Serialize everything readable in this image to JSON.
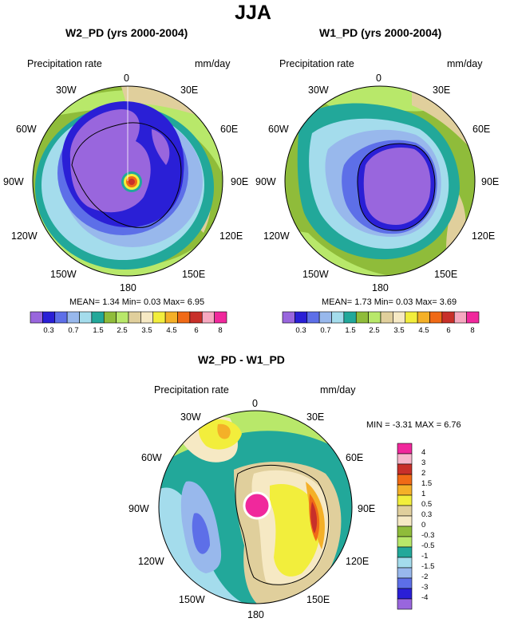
{
  "main_title": "JJA",
  "chart_data": [
    {
      "type": "heatmap",
      "projection": "south-polar-stereographic",
      "title": "W2_PD (yrs 2000-2004)",
      "variable": "Precipitation rate",
      "units": "mm/day",
      "longitude_labels": [
        "0",
        "30E",
        "60E",
        "90E",
        "120E",
        "150E",
        "180",
        "150W",
        "120W",
        "90W",
        "60W",
        "30W"
      ],
      "stats": {
        "mean_label": "MEAN=",
        "mean": "1.34",
        "min_label": "Min=",
        "min": "0.03",
        "max_label": "Max=",
        "max": "6.95"
      },
      "colorbar": {
        "levels": [
          "0.3",
          "0.7",
          "1.5",
          "2.5",
          "3.5",
          "4.5",
          "6",
          "8"
        ],
        "colors": [
          "#9966dd",
          "#2a1fd6",
          "#5d6fe8",
          "#98b8ec",
          "#a4dcec",
          "#22a89a",
          "#8fbc3a",
          "#b8e86a",
          "#e0cf9c",
          "#f6e9c4",
          "#f2ee3c",
          "#f4b028",
          "#f06a16",
          "#c8302a",
          "#f6a8c0",
          "#f0289c"
        ]
      }
    },
    {
      "type": "heatmap",
      "projection": "south-polar-stereographic",
      "title": "W1_PD (yrs 2000-2004)",
      "variable": "Precipitation rate",
      "units": "mm/day",
      "longitude_labels": [
        "0",
        "30E",
        "60E",
        "90E",
        "120E",
        "150E",
        "180",
        "150W",
        "120W",
        "90W",
        "60W",
        "30W"
      ],
      "stats": {
        "mean_label": "MEAN=",
        "mean": "1.73",
        "min_label": "Min=",
        "min": "0.03",
        "max_label": "Max=",
        "max": "3.69"
      },
      "colorbar": {
        "levels": [
          "0.3",
          "0.7",
          "1.5",
          "2.5",
          "3.5",
          "4.5",
          "6",
          "8"
        ],
        "colors": [
          "#9966dd",
          "#2a1fd6",
          "#5d6fe8",
          "#98b8ec",
          "#a4dcec",
          "#22a89a",
          "#8fbc3a",
          "#b8e86a",
          "#e0cf9c",
          "#f6e9c4",
          "#f2ee3c",
          "#f4b028",
          "#f06a16",
          "#c8302a",
          "#f6a8c0",
          "#f0289c"
        ]
      }
    },
    {
      "type": "heatmap",
      "projection": "south-polar-stereographic",
      "title": "W2_PD - W1_PD",
      "variable": "Precipitation rate",
      "units": "mm/day",
      "longitude_labels": [
        "0",
        "30E",
        "60E",
        "90E",
        "120E",
        "150E",
        "180",
        "150W",
        "120W",
        "90W",
        "60W",
        "30W"
      ],
      "stats": {
        "min_label": "MIN =",
        "min": "-3.31",
        "max_label": "MAX =",
        "max": "6.76"
      },
      "colorbar": {
        "levels": [
          "4",
          "3",
          "2",
          "1.5",
          "1",
          "0.5",
          "0.3",
          "0",
          "-0.3",
          "-0.5",
          "-1",
          "-1.5",
          "-2",
          "-3",
          "-4"
        ],
        "colors": [
          "#f0289c",
          "#f6b8cc",
          "#c8302a",
          "#f06a16",
          "#f4b028",
          "#f2ee3c",
          "#e0cf9c",
          "#f6e9c4",
          "#8fbc3a",
          "#b8e86a",
          "#22a89a",
          "#a4dcec",
          "#98b8ec",
          "#5d6fe8",
          "#2a1fd6",
          "#9966dd"
        ]
      }
    }
  ]
}
